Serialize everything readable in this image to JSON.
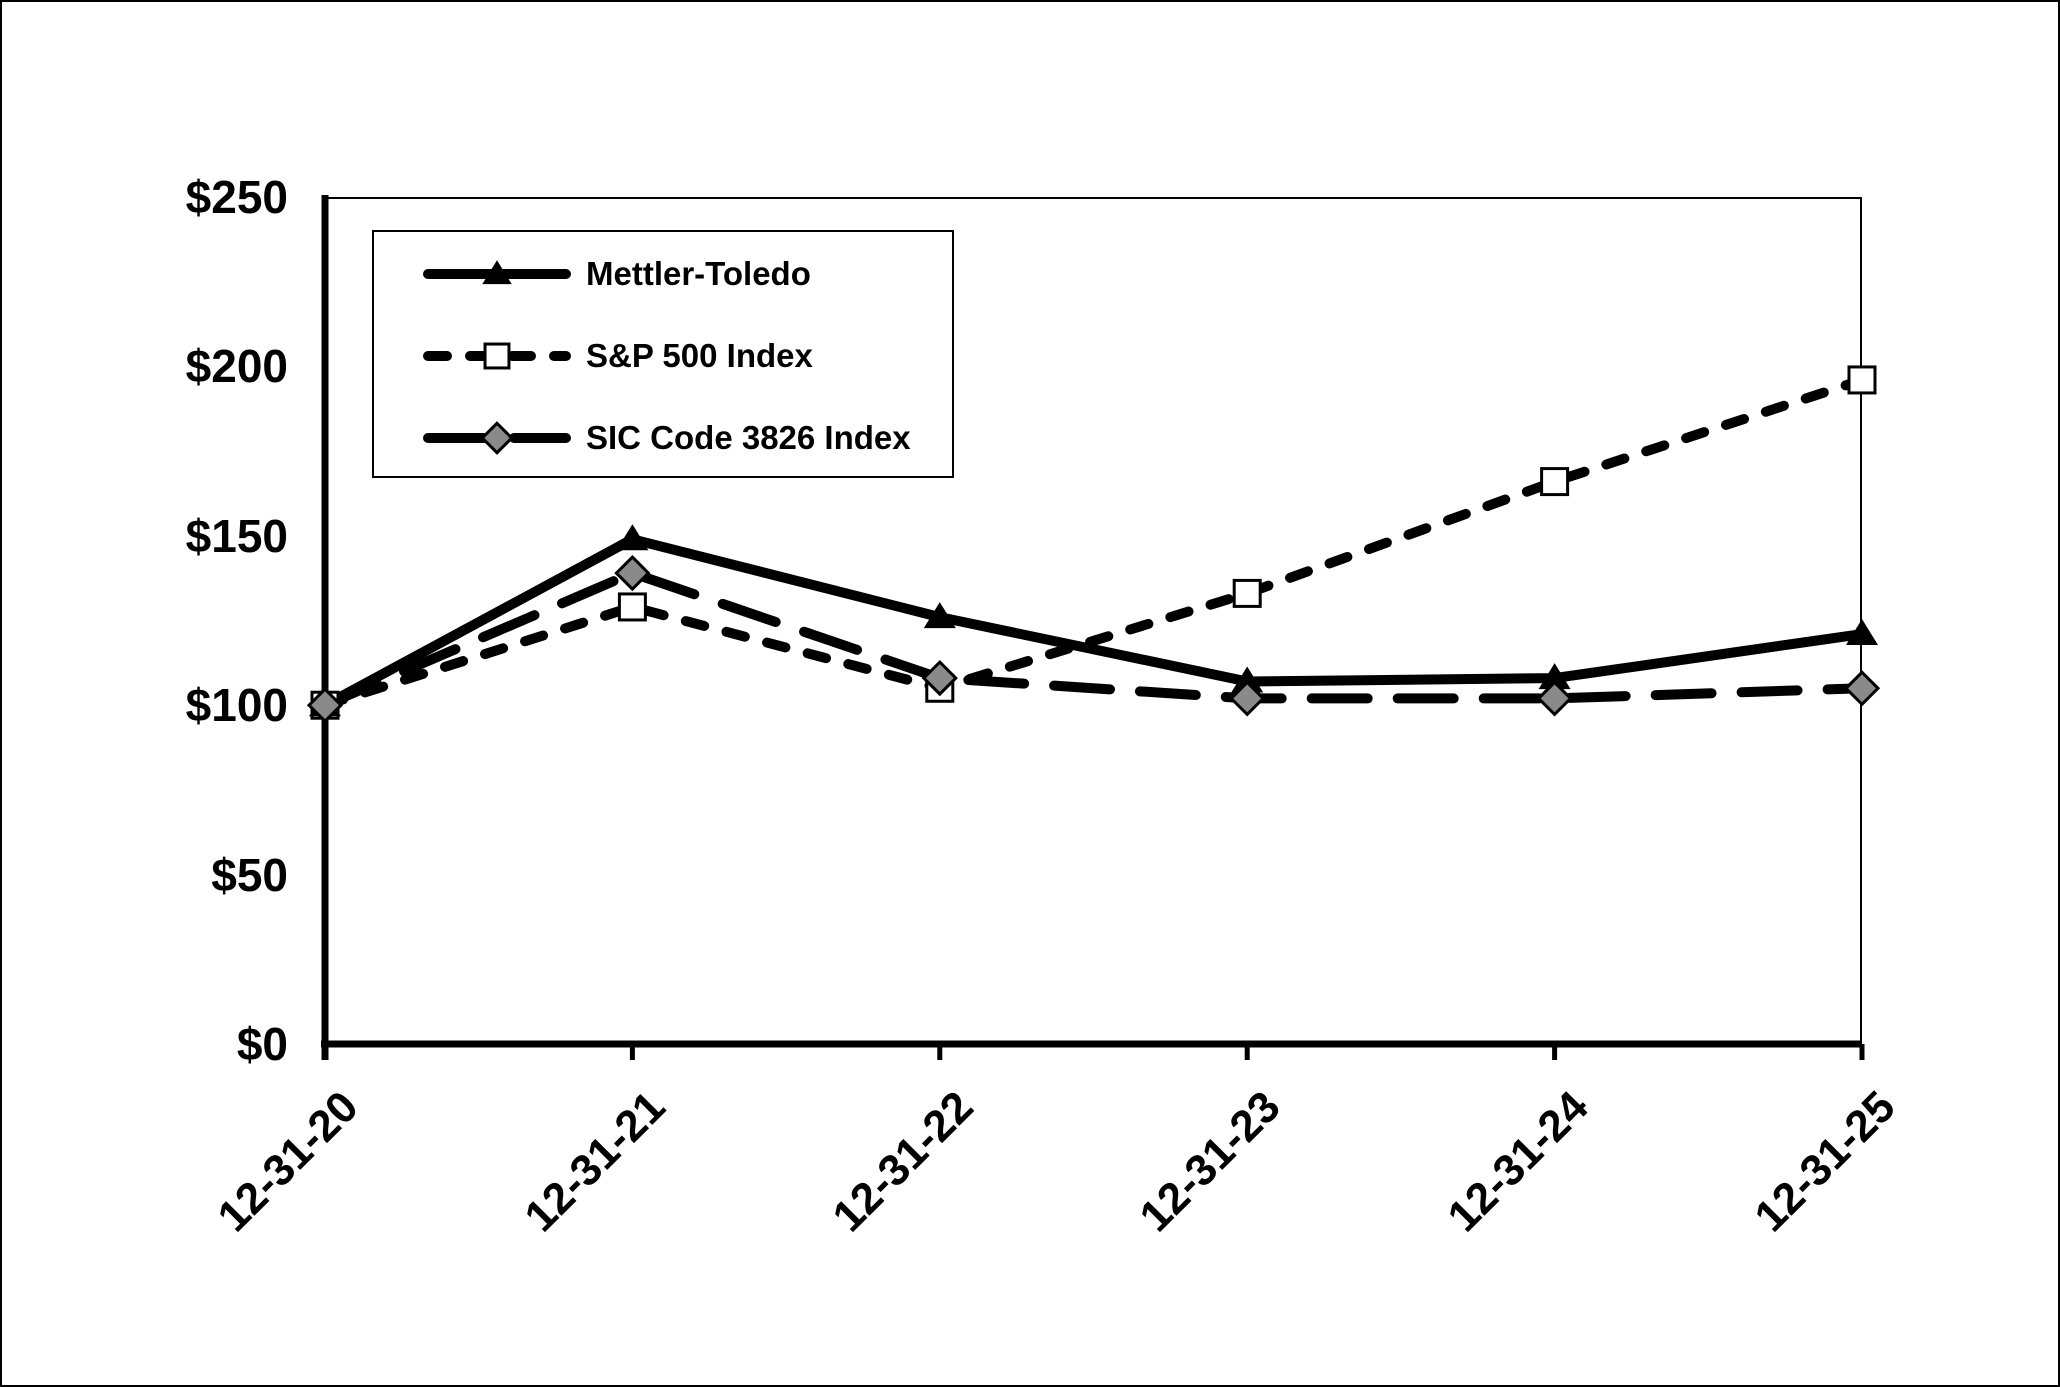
{
  "chart_data": {
    "type": "line",
    "title": "",
    "categories": [
      "12-31-20",
      "12-31-21",
      "12-31-22",
      "12-31-23",
      "12-31-24",
      "12-31-25"
    ],
    "series": [
      {
        "name": "Mettler-Toledo",
        "values": [
          100,
          149,
          126,
          107,
          108,
          121
        ],
        "line_style": "solid",
        "marker": "triangle",
        "stroke": "#000000",
        "marker_fill": "#000000"
      },
      {
        "name": "S&P 500 Index",
        "values": [
          100,
          129,
          105,
          133,
          166,
          196
        ],
        "line_style": "dash",
        "marker": "square",
        "stroke": "#000000",
        "marker_fill": "#ffffff"
      },
      {
        "name": "SIC Code 3826 Index",
        "values": [
          100,
          139,
          108,
          102,
          102,
          105
        ],
        "line_style": "long-dash",
        "marker": "diamond",
        "stroke": "#000000",
        "marker_fill": "#8a8a8a"
      }
    ],
    "y_axis": {
      "range": [
        0,
        250
      ],
      "ticks": [
        {
          "label": "$250",
          "value": 250
        },
        {
          "label": "$200",
          "value": 200
        },
        {
          "label": "$150",
          "value": 150
        },
        {
          "label": "$100",
          "value": 100
        },
        {
          "label": "$50",
          "value": 50
        },
        {
          "label": "$0",
          "value": 0
        }
      ]
    },
    "x_axis": {
      "label_rotation_deg": -45
    },
    "legend": {
      "position": "top-left-inside"
    },
    "grid": false,
    "background": "#ffffff",
    "axis_color": "#000000"
  }
}
